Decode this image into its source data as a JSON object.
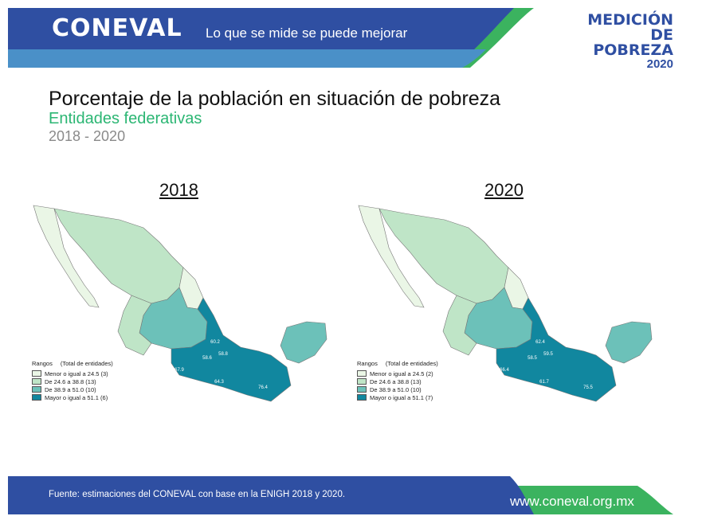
{
  "header": {
    "logo": "CONEVAL",
    "tagline": "Lo que se mide se puede mejorar",
    "brand_line1": "MEDICIÓN",
    "brand_line2": "DE POBREZA",
    "brand_line3": "2020",
    "colors": {
      "primary": "#2f4fa2",
      "secondary": "#4a90c8",
      "green": "#3bb35f"
    }
  },
  "title": {
    "prefix": "Porcentaje de la población en situación de",
    "emphasis": "pobreza"
  },
  "subtitle": "Entidades federativas",
  "period": "2018 - 2020",
  "legend_colors": [
    "#eaf6e6",
    "#bfe5c7",
    "#6cc1b9",
    "#11879f"
  ],
  "maps": [
    {
      "year": "2018",
      "legend": {
        "title": "Rangos",
        "count_label": "(Total de entidades)",
        "items": [
          "Menor o igual a 24.5 (3)",
          "De 24.6 a 38.8 (13)",
          "De 38.9 a 51.0 (10)",
          "Mayor o igual a 51.1 (6)"
        ]
      },
      "value_labels": [
        "67.9",
        "64.3",
        "76.4",
        "58.8",
        "58.6",
        "60.2"
      ]
    },
    {
      "year": "2020",
      "legend": {
        "title": "Rangos",
        "count_label": "(Total de entidades)",
        "items": [
          "Menor o igual a 24.5 (2)",
          "De 24.6 a 38.8 (13)",
          "De 38.9 a 51.0 (10)",
          "Mayor o igual a 51.1 (7)"
        ]
      },
      "value_labels": [
        "66.4",
        "61.7",
        "75.5",
        "59.5",
        "58.5",
        "62.4"
      ]
    }
  ],
  "footer": {
    "source": "Fuente: estimaciones del CONEVAL con base en la ENIGH 2018 y 2020.",
    "website": "www.coneval.org.mx"
  }
}
